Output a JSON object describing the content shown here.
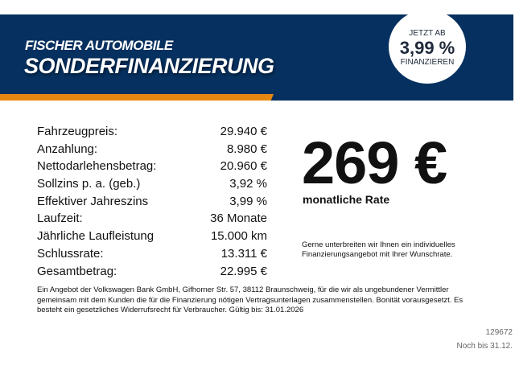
{
  "header": {
    "brand": "FISCHER AUTOMOBILE",
    "title": "SONDERFINANZIERUNG",
    "badge": {
      "line1": "JETZT AB",
      "rate": "3,99 %",
      "line3": "FINANZIEREN"
    },
    "colors": {
      "banner": "#06305f",
      "stripe": "#e8870f"
    }
  },
  "rows": [
    {
      "label": "Fahrzeugpreis:",
      "value": "29.940 €"
    },
    {
      "label": "Anzahlung:",
      "value": "8.980 €"
    },
    {
      "label": "Nettodarlehensbetrag:",
      "value": "20.960 €"
    },
    {
      "label": "Sollzins p. a. (geb.)",
      "value": "3,92 %"
    },
    {
      "label": "Effektiver Jahreszins",
      "value": "3,99 %"
    },
    {
      "label": "Laufzeit:",
      "value": "36 Monate"
    },
    {
      "label": "Jährliche Laufleistung",
      "value": "15.000 km"
    },
    {
      "label": "Schlussrate:",
      "value": "13.311 €"
    },
    {
      "label": "Gesamtbetrag:",
      "value": "22.995 €"
    }
  ],
  "rate": {
    "amount": "269 €",
    "label": "monatliche Rate"
  },
  "note": "Gerne unterbreiten wir Ihnen ein individuelles Finanzierungsangebot mit Ihrer Wunschrate.",
  "legal": "Ein Angebot der Volkswagen Bank GmbH, Gifhorner Str. 57, 38112 Braunschweig, für die wir als ungebundener Vermittler gemeinsam mit dem Kunden die für die Finanzierung nötigen Vertragsunterlagen zusammenstellen. Bonität vorausgesetzt. Es besteht ein gesetzliches Widerrufsrecht für Verbraucher. Gültig bis: 31.01.2026",
  "code": "129672",
  "valid": "Noch bis 31.12."
}
